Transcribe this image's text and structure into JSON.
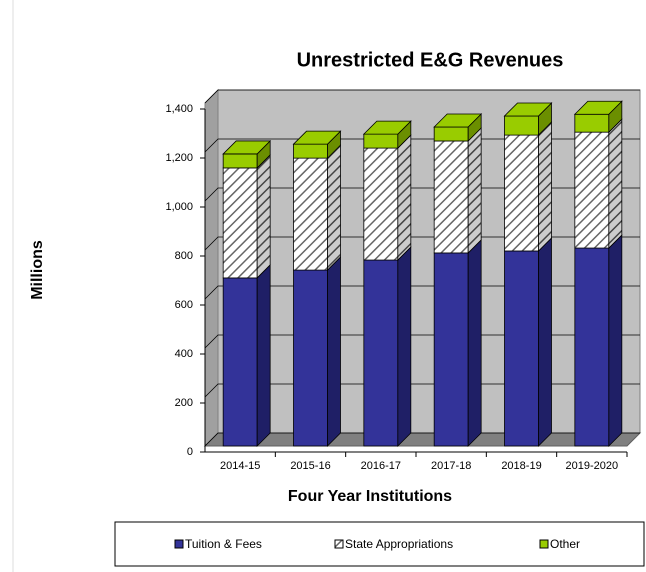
{
  "chart_data": {
    "type": "bar3d_stacked",
    "title": "Unrestricted E&G Revenues",
    "x_label": "Four Year Institutions",
    "y_label": "Millions",
    "categories": [
      "2014-15",
      "2015-16",
      "2016-17",
      "2017-18",
      "2018-19",
      "2019-2020"
    ],
    "series": [
      {
        "name": "Tuition & Fees",
        "color": "#333399",
        "values": [
          686,
          718,
          759,
          788,
          796,
          808
        ]
      },
      {
        "name": "State Appropriations",
        "color": "#ffffff",
        "hatch": true,
        "values": [
          449,
          457,
          457,
          457,
          473,
          473
        ]
      },
      {
        "name": "Other",
        "color": "#99cc00",
        "values": [
          57,
          57,
          57,
          57,
          78,
          73
        ]
      }
    ],
    "ylim": [
      0,
      1400
    ],
    "yticks": [
      0,
      {
        "value": 200,
        "label": "200"
      },
      400,
      600,
      800,
      {
        "value": 1000,
        "label": "1,000"
      },
      {
        "value": 1200,
        "label": "1,200"
      },
      {
        "value": 1400,
        "label": "1,400"
      }
    ],
    "grid": true,
    "legend": "bottom"
  }
}
